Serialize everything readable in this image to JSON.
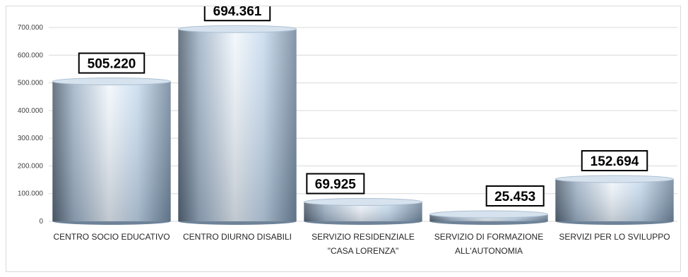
{
  "chart_data": {
    "type": "bar",
    "categories": [
      [
        "CENTRO SOCIO EDUCATIVO"
      ],
      [
        "CENTRO DIURNO DISABILI"
      ],
      [
        "SERVIZIO RESIDENZIALE",
        "\"CASA LORENZA\""
      ],
      [
        "SERVIZIO DI FORMAZIONE",
        "ALL'AUTONOMIA"
      ],
      [
        "SERVIZI PER LO SVILUPPO"
      ]
    ],
    "values": [
      505220,
      694361,
      69925,
      25453,
      152694
    ],
    "value_labels": [
      "505.220",
      "694.361",
      "69.925",
      "25.453",
      "152.694"
    ],
    "y_ticks": [
      0,
      100000,
      200000,
      300000,
      400000,
      500000,
      600000,
      700000
    ],
    "y_tick_labels": [
      "0",
      "100.000",
      "200.000",
      "300.000",
      "400.000",
      "500.000",
      "600.000",
      "700.000"
    ],
    "ylim": [
      0,
      700000
    ],
    "grid": true,
    "legend": "none",
    "title": "",
    "xlabel": "",
    "ylabel": "",
    "colors": {
      "bar_light": "#eef5fc",
      "bar_mid": "#c4d8ec",
      "bar_dark": "#5f6f80",
      "bar_top": "#d6e3ef"
    }
  }
}
